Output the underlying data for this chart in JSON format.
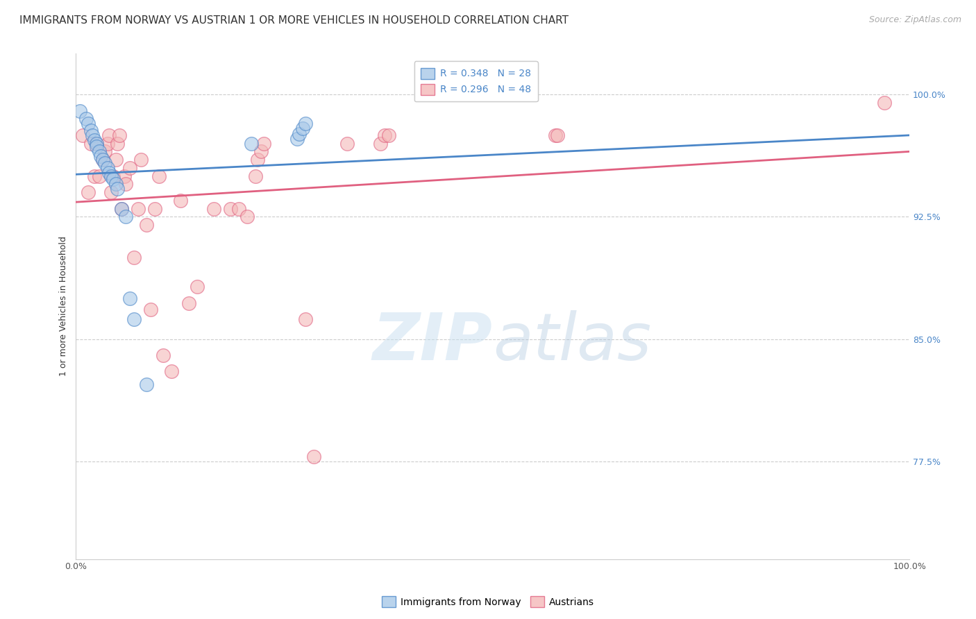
{
  "title": "IMMIGRANTS FROM NORWAY VS AUSTRIAN 1 OR MORE VEHICLES IN HOUSEHOLD CORRELATION CHART",
  "source": "Source: ZipAtlas.com",
  "ylabel": "1 or more Vehicles in Household",
  "xlim": [
    0,
    1.0
  ],
  "ylim": [
    0.715,
    1.025
  ],
  "yticks": [
    0.775,
    0.85,
    0.925,
    1.0
  ],
  "ytick_labels": [
    "77.5%",
    "85.0%",
    "92.5%",
    "100.0%"
  ],
  "xticks": [
    0.0,
    0.1,
    0.2,
    0.3,
    0.4,
    0.5,
    0.6,
    0.7,
    0.8,
    0.9,
    1.0
  ],
  "xtick_labels": [
    "0.0%",
    "",
    "",
    "",
    "",
    "",
    "",
    "",
    "",
    "",
    "100.0%"
  ],
  "norway_R": "0.348",
  "norway_N": "28",
  "austrian_R": "0.296",
  "austrian_N": "48",
  "legend_labels": [
    "Immigrants from Norway",
    "Austrians"
  ],
  "norway_color": "#a8c8e8",
  "austrian_color": "#f4b8b8",
  "norway_edge_color": "#4a86c8",
  "austrian_edge_color": "#e06080",
  "norway_line_color": "#4a86c8",
  "austrian_line_color": "#e06080",
  "norway_x": [
    0.005,
    0.012,
    0.015,
    0.018,
    0.02,
    0.022,
    0.025,
    0.025,
    0.028,
    0.03,
    0.032,
    0.035,
    0.038,
    0.04,
    0.042,
    0.045,
    0.048,
    0.05,
    0.055,
    0.06,
    0.065,
    0.07,
    0.085,
    0.21,
    0.265,
    0.268,
    0.272,
    0.275
  ],
  "norway_y": [
    0.99,
    0.985,
    0.982,
    0.978,
    0.975,
    0.972,
    0.97,
    0.968,
    0.965,
    0.962,
    0.96,
    0.958,
    0.955,
    0.952,
    0.95,
    0.948,
    0.945,
    0.942,
    0.93,
    0.925,
    0.875,
    0.862,
    0.822,
    0.97,
    0.973,
    0.976,
    0.979,
    0.982
  ],
  "austrian_x": [
    0.008,
    0.015,
    0.018,
    0.022,
    0.025,
    0.028,
    0.032,
    0.035,
    0.038,
    0.04,
    0.042,
    0.045,
    0.048,
    0.05,
    0.052,
    0.055,
    0.058,
    0.06,
    0.065,
    0.07,
    0.075,
    0.078,
    0.085,
    0.09,
    0.095,
    0.1,
    0.105,
    0.115,
    0.125,
    0.135,
    0.145,
    0.165,
    0.185,
    0.195,
    0.205,
    0.215,
    0.218,
    0.222,
    0.225,
    0.275,
    0.285,
    0.325,
    0.365,
    0.37,
    0.375,
    0.575,
    0.578,
    0.97
  ],
  "austrian_y": [
    0.975,
    0.94,
    0.97,
    0.95,
    0.97,
    0.95,
    0.96,
    0.965,
    0.97,
    0.975,
    0.94,
    0.95,
    0.96,
    0.97,
    0.975,
    0.93,
    0.95,
    0.945,
    0.955,
    0.9,
    0.93,
    0.96,
    0.92,
    0.868,
    0.93,
    0.95,
    0.84,
    0.83,
    0.935,
    0.872,
    0.882,
    0.93,
    0.93,
    0.93,
    0.925,
    0.95,
    0.96,
    0.965,
    0.97,
    0.862,
    0.778,
    0.97,
    0.97,
    0.975,
    0.975,
    0.975,
    0.975,
    0.995
  ],
  "background_color": "#ffffff",
  "grid_color": "#cccccc",
  "title_fontsize": 11,
  "source_fontsize": 9,
  "axis_label_fontsize": 9,
  "tick_fontsize": 9,
  "legend_fontsize": 10,
  "norway_line_x0": 0.0,
  "norway_line_x1": 1.0,
  "norway_line_y0": 0.951,
  "norway_line_y1": 0.975,
  "austrian_line_x0": 0.0,
  "austrian_line_x1": 1.0,
  "austrian_line_y0": 0.934,
  "austrian_line_y1": 0.965
}
